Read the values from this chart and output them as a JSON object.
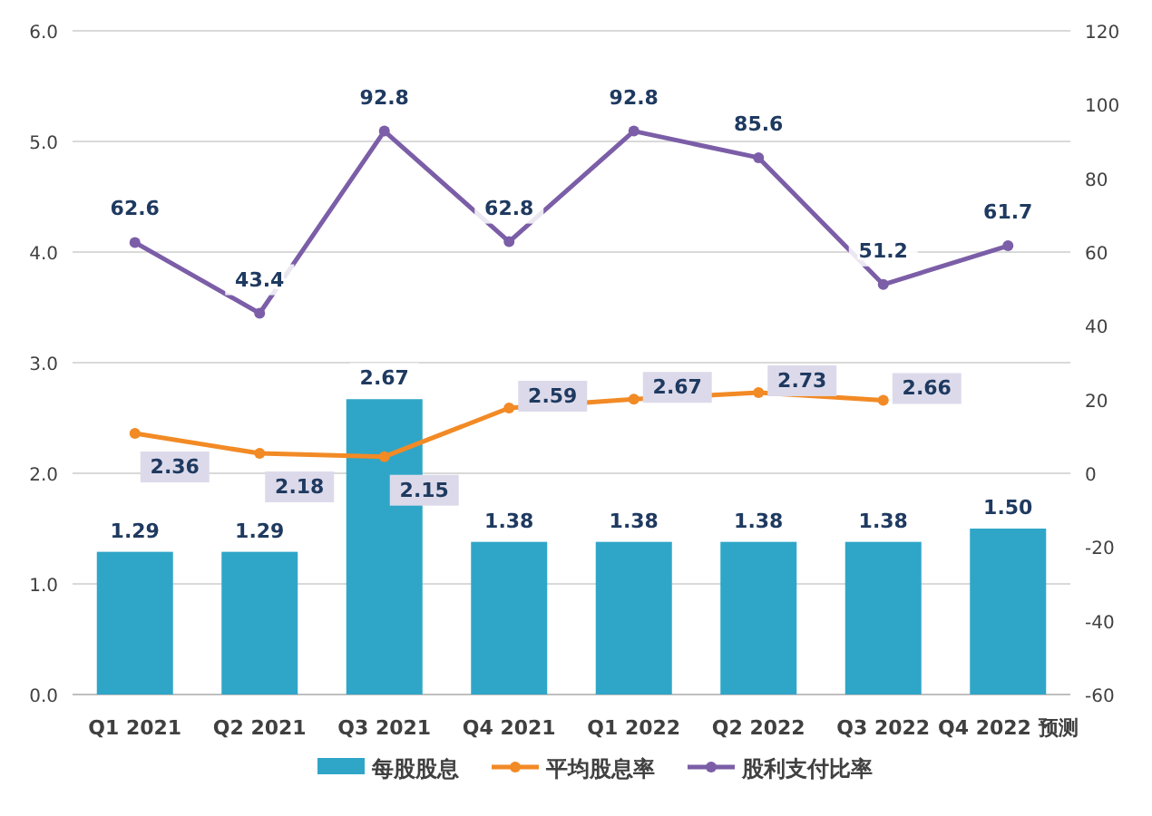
{
  "chart_data": {
    "type": "bar",
    "categories": [
      "Q1 2021",
      "Q2 2021",
      "Q3 2021",
      "Q4 2021",
      "Q1 2022",
      "Q2 2022",
      "Q3 2022",
      "Q4 2022 预测"
    ],
    "series": [
      {
        "name": "每股股息",
        "color": "#2fa6c8",
        "values": [
          1.29,
          1.29,
          2.67,
          1.38,
          1.38,
          1.38,
          1.38,
          1.5
        ],
        "value_labels": [
          "1.29",
          "1.29",
          "2.67",
          "1.38",
          "1.38",
          "1.38",
          "1.38",
          "1.50"
        ]
      },
      {
        "name": "平均股息率",
        "type": "line",
        "color": "#f28a25",
        "values": [
          2.36,
          2.18,
          2.15,
          2.59,
          2.67,
          2.73,
          2.66,
          null
        ],
        "value_labels": [
          "2.36",
          "2.18",
          "2.15",
          "2.59",
          "2.67",
          "2.73",
          "2.66",
          null
        ]
      },
      {
        "name": "股利支付比率",
        "type": "line",
        "axis": "y2",
        "color": "#7b5ea7",
        "values": [
          62.6,
          43.4,
          92.8,
          62.8,
          92.8,
          85.6,
          51.2,
          61.7
        ],
        "value_labels": [
          "62.6",
          "43.4",
          "92.8",
          "62.8",
          "92.8",
          "85.6",
          "51.2",
          "61.7"
        ]
      }
    ],
    "ylim": [
      0,
      6
    ],
    "yticks": [
      {
        "value": 0,
        "label": "0.0"
      },
      {
        "value": 1,
        "label": "1.0"
      },
      {
        "value": 2,
        "label": "2.0"
      },
      {
        "value": 3,
        "label": "3.0"
      },
      {
        "value": 4,
        "label": "4.0"
      },
      {
        "value": 5,
        "label": "5.0"
      },
      {
        "value": 6,
        "label": "6.0"
      }
    ],
    "y2lim": [
      -60,
      120
    ],
    "y2ticks": [
      -60,
      -40,
      -20,
      0,
      20,
      40,
      60,
      80,
      100,
      120
    ],
    "grid": "y",
    "legend": "bottom",
    "marker": "circle"
  }
}
